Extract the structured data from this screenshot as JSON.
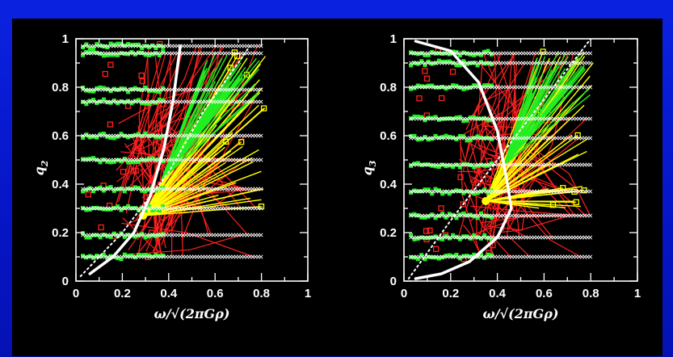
{
  "chart_data": [
    {
      "type": "scatter",
      "panel": "left",
      "ylabel": "q",
      "ylabel_sub": "2",
      "xlabel": "ω/√(2πGρ)",
      "xlim": [
        0,
        1
      ],
      "ylim": [
        0,
        1
      ],
      "x_ticks": [
        "0",
        "0.2",
        "0.4",
        "0.6",
        "0.8",
        "1"
      ],
      "y_ticks": [
        "0",
        "0.2",
        "0.4",
        "0.6",
        "0.8",
        "1"
      ],
      "series": [
        {
          "color": "#ffffff",
          "marker": "cross",
          "style": "initial rows at q levels, x from 0.02 to 0.8"
        },
        {
          "color": "#ff2020",
          "marker": "square",
          "style": "trajectories from initial points"
        },
        {
          "color": "#ffff00",
          "marker": "square",
          "style": "trajectories"
        },
        {
          "color": "#22ee22",
          "marker": "square",
          "style": "trajectories"
        }
      ],
      "initial_q_levels": [
        0.1,
        0.19,
        0.3,
        0.38,
        0.5,
        0.6,
        0.74,
        0.79,
        0.94,
        0.97
      ],
      "curves": [
        {
          "color": "#ffffff",
          "style": "dotted",
          "points": [
            [
              0.02,
              0.02
            ],
            [
              0.2,
              0.2
            ],
            [
              0.4,
              0.45
            ],
            [
              0.55,
              0.7
            ],
            [
              0.7,
              0.9
            ],
            [
              0.75,
              0.97
            ]
          ]
        },
        {
          "color": "#ffffff",
          "style": "solid",
          "points": [
            [
              0.06,
              0.03
            ],
            [
              0.16,
              0.1
            ],
            [
              0.25,
              0.2
            ],
            [
              0.32,
              0.35
            ],
            [
              0.38,
              0.55
            ],
            [
              0.42,
              0.75
            ],
            [
              0.44,
              0.9
            ],
            [
              0.45,
              0.97
            ]
          ]
        }
      ],
      "convergence_point": [
        0.29,
        0.27
      ]
    },
    {
      "type": "scatter",
      "panel": "right",
      "ylabel": "q",
      "ylabel_sub": "3",
      "xlabel": "ω/√(2πGρ)",
      "xlim": [
        0,
        1
      ],
      "ylim": [
        0,
        1
      ],
      "x_ticks": [
        "0",
        "0.2",
        "0.4",
        "0.6",
        "0.8",
        "1"
      ],
      "y_ticks": [
        "0",
        "0.2",
        "0.4",
        "0.6",
        "0.8",
        "1"
      ],
      "series": [
        {
          "color": "#ffffff",
          "marker": "cross",
          "style": "initial rows at q levels, x from 0.02 to 0.8"
        },
        {
          "color": "#ff2020",
          "marker": "square",
          "style": "trajectories from initial points"
        },
        {
          "color": "#ffff00",
          "marker": "square",
          "style": "trajectories"
        },
        {
          "color": "#22ee22",
          "marker": "square",
          "style": "trajectories"
        }
      ],
      "initial_q_levels": [
        0.1,
        0.18,
        0.27,
        0.37,
        0.48,
        0.59,
        0.67,
        0.8,
        0.9,
        0.94
      ],
      "curves": [
        {
          "color": "#ffffff",
          "style": "dotted",
          "points": [
            [
              0.02,
              0.01
            ],
            [
              0.2,
              0.25
            ],
            [
              0.4,
              0.5
            ],
            [
              0.6,
              0.75
            ],
            [
              0.8,
              1.0
            ]
          ]
        },
        {
          "color": "#ffffff",
          "style": "solid",
          "points": [
            [
              0.05,
              0.99
            ],
            [
              0.2,
              0.95
            ],
            [
              0.32,
              0.82
            ],
            [
              0.4,
              0.62
            ],
            [
              0.44,
              0.42
            ],
            [
              0.46,
              0.3
            ],
            [
              0.4,
              0.18
            ],
            [
              0.28,
              0.08
            ],
            [
              0.16,
              0.03
            ],
            [
              0.05,
              0.01
            ]
          ]
        }
      ],
      "convergence_point": [
        0.35,
        0.33
      ]
    }
  ]
}
